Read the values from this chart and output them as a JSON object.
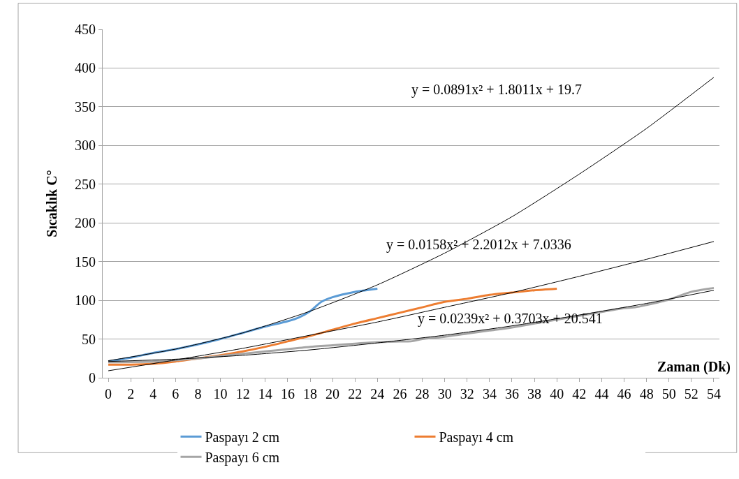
{
  "chart_data": {
    "type": "line",
    "xlabel": "Zaman (Dk)",
    "ylabel": "Sıcaklık C°",
    "xlim": [
      -0.5,
      54.5
    ],
    "xticks": [
      0,
      2,
      4,
      6,
      8,
      10,
      12,
      14,
      16,
      18,
      20,
      22,
      24,
      26,
      28,
      30,
      32,
      34,
      36,
      38,
      40,
      42,
      44,
      46,
      48,
      50,
      52,
      54
    ],
    "ylim": [
      0,
      450
    ],
    "yticks": [
      0,
      50,
      100,
      150,
      200,
      250,
      300,
      350,
      400,
      450
    ],
    "grid": "y",
    "legend": "bottom",
    "series": [
      {
        "name": "Paspayı 2 cm",
        "color": "#5b9bd5",
        "x": [
          0,
          2,
          4,
          6,
          8,
          10,
          12,
          14,
          16,
          17,
          18,
          19,
          20,
          22,
          24
        ],
        "values": [
          21,
          26,
          32,
          37,
          43,
          50,
          58,
          66,
          73,
          78,
          86,
          98,
          104,
          111,
          115
        ]
      },
      {
        "name": "Paspayı 4 cm",
        "color": "#ed7d31",
        "x": [
          0,
          2,
          4,
          6,
          8,
          10,
          12,
          14,
          16,
          18,
          20,
          22,
          24,
          26,
          28,
          30,
          32,
          34,
          36,
          38,
          40
        ],
        "values": [
          17,
          17,
          18,
          21,
          25,
          29,
          34,
          40,
          47,
          54,
          62,
          70,
          77,
          84,
          91,
          98,
          102,
          107,
          110,
          113,
          115
        ]
      },
      {
        "name": "Paspayı 6 cm",
        "color": "#a5a5a5",
        "x": [
          0,
          4,
          8,
          10,
          12,
          14,
          16,
          18,
          20,
          22,
          24,
          26,
          27,
          28,
          30,
          32,
          34,
          36,
          38,
          40,
          42,
          44,
          46,
          47,
          48,
          50,
          52,
          54
        ],
        "values": [
          20,
          21,
          25,
          28,
          31,
          34,
          37,
          40,
          42,
          44,
          46,
          47,
          47,
          50,
          53,
          57,
          61,
          65,
          70,
          75,
          80,
          85,
          90,
          91,
          94,
          101,
          111,
          116
        ]
      },
      {
        "color": "#000000",
        "x": [
          0,
          6,
          12,
          18,
          24,
          30,
          36,
          42,
          48,
          54
        ],
        "values": [
          22,
          37,
          58,
          86,
          120,
          161,
          208,
          263,
          322,
          388
        ]
      },
      {
        "color": "#000000",
        "x": [
          0,
          6,
          12,
          18,
          24,
          30,
          36,
          42,
          48,
          54
        ],
        "values": [
          9,
          23,
          38,
          55,
          72,
          91,
          110,
          131,
          153,
          176
        ]
      },
      {
        "color": "#000000",
        "x": [
          0,
          6,
          12,
          18,
          24,
          30,
          36,
          42,
          48,
          54
        ],
        "values": [
          21,
          24,
          29,
          36,
          45,
          55,
          67,
          81,
          96,
          113
        ]
      }
    ],
    "annotations": [
      "y = 0.0891x² + 1.8011x + 19.7",
      "y = 0.0158x² + 2.2012x + 7.0336",
      "y = 0.0239x² + 0.3703x + 20.541"
    ]
  }
}
